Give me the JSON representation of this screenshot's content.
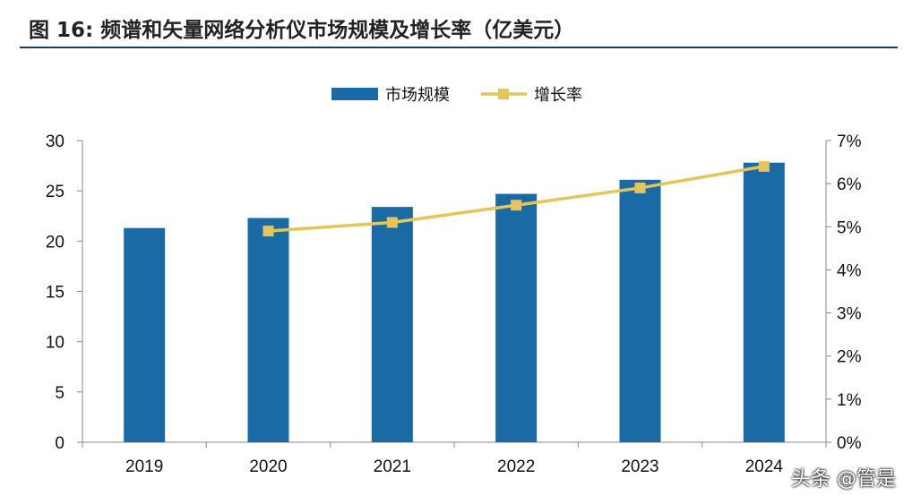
{
  "figure": {
    "title": "图 16: 频谱和矢量网络分析仪市场规模及增长率（亿美元）"
  },
  "watermark": "头条 @管是",
  "colors": {
    "bar": "#1a6aa5",
    "line": "#e3c55a",
    "axis": "#888888"
  },
  "chart_data": {
    "type": "bar",
    "categories": [
      "2019",
      "2020",
      "2021",
      "2022",
      "2023",
      "2024"
    ],
    "series": [
      {
        "name": "市场规模",
        "type": "bar",
        "axis": "left",
        "values": [
          21.3,
          22.3,
          23.4,
          24.7,
          26.1,
          27.8
        ]
      },
      {
        "name": "增长率",
        "type": "line",
        "axis": "right",
        "marker": "square",
        "values": [
          null,
          4.9,
          5.1,
          5.5,
          5.9,
          6.4
        ]
      }
    ],
    "y_left": {
      "range": [
        0,
        30
      ],
      "ticks": [
        "0",
        "5",
        "10",
        "15",
        "20",
        "25",
        "30"
      ]
    },
    "y_right": {
      "range": [
        0,
        7
      ],
      "ticks": [
        "0%",
        "1%",
        "2%",
        "3%",
        "4%",
        "5%",
        "6%",
        "7%"
      ]
    },
    "legend": "top-center",
    "grid": false
  }
}
